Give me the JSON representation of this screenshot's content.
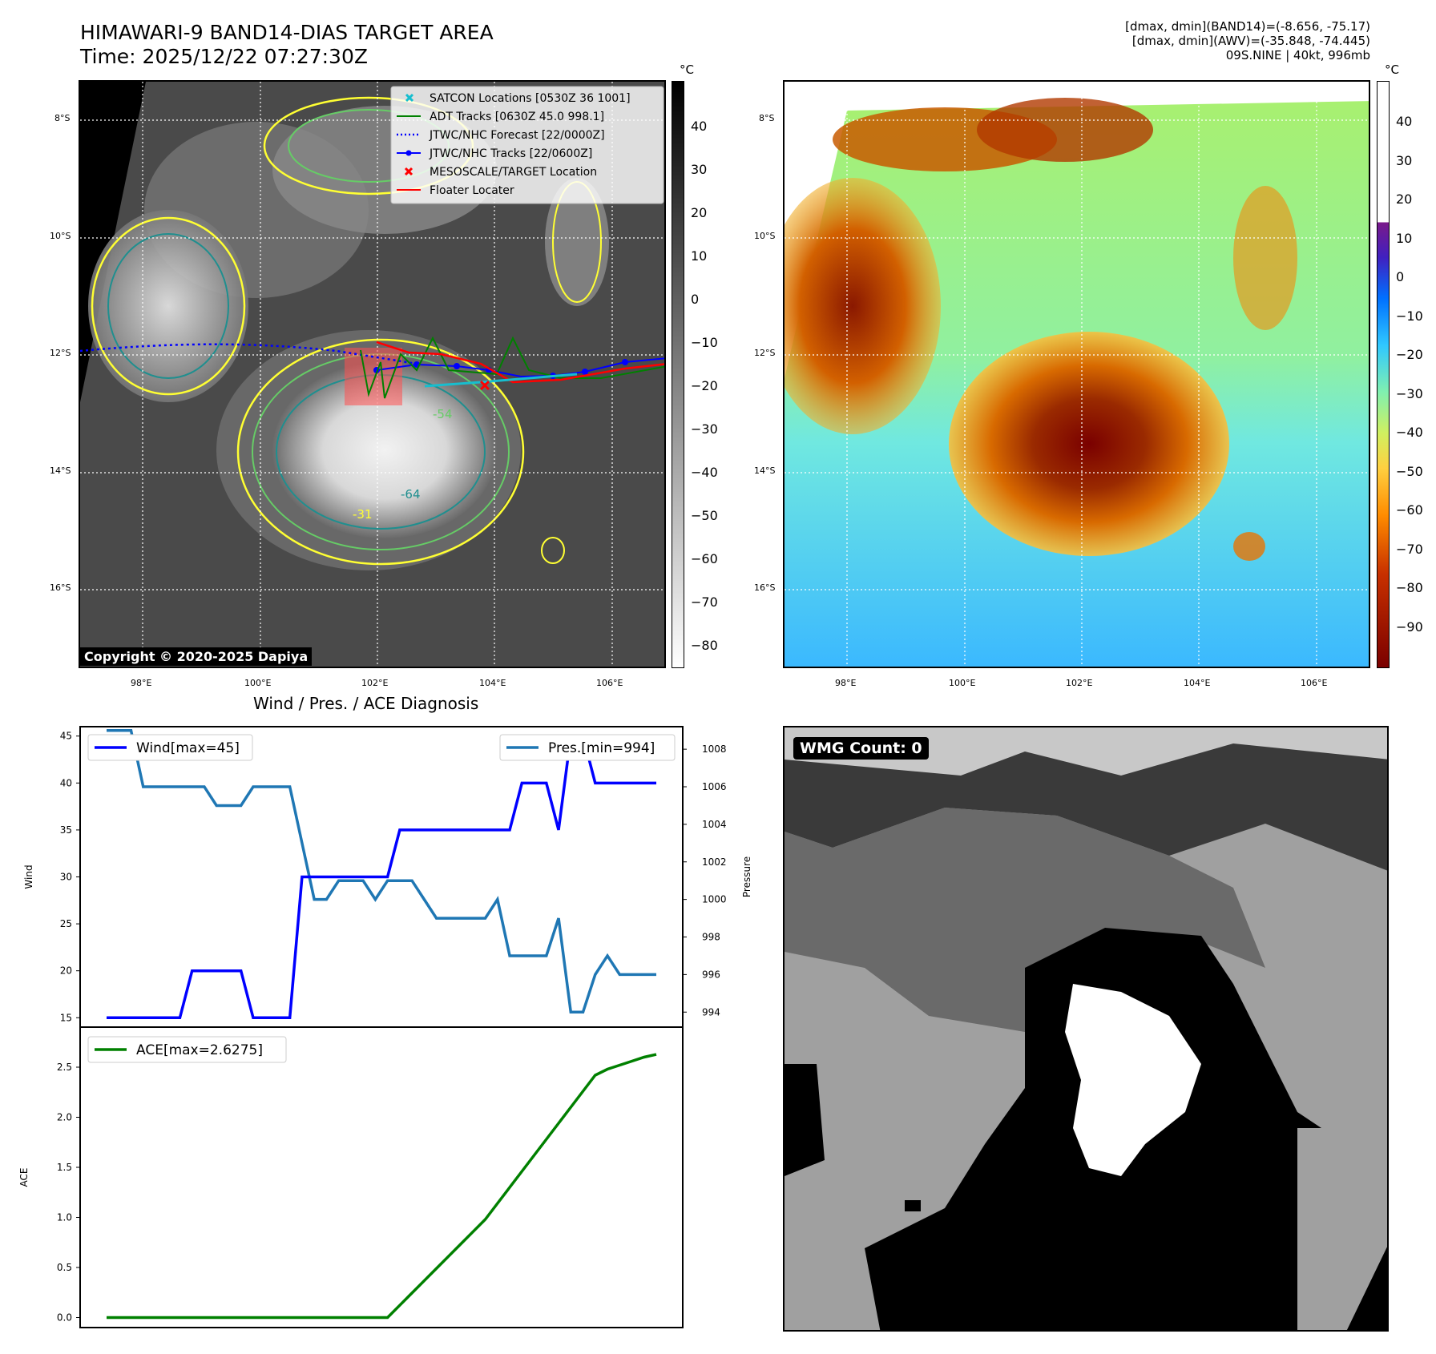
{
  "header": {
    "title": "HIMAWARI-9 BAND14-DIAS TARGET AREA",
    "time": "Time: 2025/12/22 07:27:30Z",
    "info_line1": "[dmax, dmin](BAND14)=(-8.656, -75.17)",
    "info_line2": "[dmax, dmin](AWV)=(-35.848, -74.445)",
    "info_line3": "09S.NINE | 40kt, 996mb"
  },
  "map": {
    "lat_labels": [
      "8°S",
      "10°S",
      "12°S",
      "14°S",
      "16°S"
    ],
    "lon_labels": [
      "98°E",
      "100°E",
      "102°E",
      "104°E",
      "106°E"
    ],
    "contour_labels": [
      "-31",
      "-54",
      "-64"
    ],
    "copyright": "Copyright © 2020-2025 Dapiya",
    "legend": [
      {
        "label": "SATCON Locations [0530Z 36 1001]",
        "color": "#17becf",
        "marker": "x"
      },
      {
        "label": "ADT Tracks [0630Z 45.0 998.1]",
        "color": "#008000",
        "marker": "line"
      },
      {
        "label": "JTWC/NHC Forecast [22/0000Z]",
        "color": "#0000ff",
        "marker": "dotted"
      },
      {
        "label": "JTWC/NHC Tracks [22/0600Z]",
        "color": "#0000ff",
        "marker": "line-dot"
      },
      {
        "label": "MESOSCALE/TARGET Location",
        "color": "#ff0000",
        "marker": "x"
      },
      {
        "label": "Floater Locater",
        "color": "#ff0000",
        "marker": "line"
      }
    ]
  },
  "colorbar_gray": {
    "unit": "°C",
    "ticks": [
      "40",
      "30",
      "20",
      "10",
      "0",
      "−10",
      "−20",
      "−30",
      "−40",
      "−50",
      "−60",
      "−70",
      "−80"
    ]
  },
  "colorbar_color": {
    "unit": "°C",
    "ticks": [
      "40",
      "30",
      "20",
      "10",
      "0",
      "−10",
      "−20",
      "−30",
      "−40",
      "−50",
      "−60",
      "−70",
      "−80",
      "−90"
    ]
  },
  "wmg": {
    "label": "WMG Count: 0"
  },
  "chart_data": [
    {
      "type": "line",
      "title": "Wind / Pres. / ACE Diagnosis",
      "xlabel": "",
      "ylabel": "Wind",
      "ylabel_right": "Pressure",
      "ylim": [
        14,
        46
      ],
      "ylim_right": [
        993.2,
        1009.2
      ],
      "y_ticks": [
        "15",
        "20",
        "25",
        "30",
        "35",
        "40",
        "45"
      ],
      "y_ticks_right": [
        "994",
        "996",
        "998",
        "1000",
        "1002",
        "1004",
        "1006",
        "1008"
      ],
      "x": [
        0,
        1,
        2,
        3,
        4,
        5,
        6,
        7,
        8,
        9,
        10,
        11,
        12,
        13,
        14,
        15,
        16,
        17,
        18,
        19,
        20,
        21,
        22,
        23,
        24,
        25,
        26,
        27,
        28,
        29,
        30,
        31,
        32,
        33,
        34,
        35,
        36,
        37,
        38,
        39,
        40,
        41,
        42,
        43,
        44,
        45
      ],
      "series": [
        {
          "name": "Wind[max=45]",
          "axis": "left",
          "color": "#0000ff",
          "values": [
            15,
            15,
            15,
            15,
            15,
            15,
            15,
            20,
            20,
            20,
            20,
            20,
            15,
            15,
            15,
            15,
            30,
            30,
            30,
            30,
            30,
            30,
            30,
            30,
            35,
            35,
            35,
            35,
            35,
            35,
            35,
            35,
            35,
            35,
            40,
            40,
            40,
            35,
            45,
            45,
            40,
            40,
            40,
            40,
            40,
            40
          ]
        },
        {
          "name": "Pres.[min=994]",
          "axis": "right",
          "color": "#1f77b4",
          "values": [
            1009,
            1009,
            1009,
            1006,
            1006,
            1006,
            1006,
            1006,
            1006,
            1005,
            1005,
            1005,
            1006,
            1006,
            1006,
            1006,
            1003,
            1000,
            1000,
            1001,
            1001,
            1001,
            1000,
            1001,
            1001,
            1001,
            1000,
            999,
            999,
            999,
            999,
            999,
            1000,
            997,
            997,
            997,
            997,
            999,
            994,
            994,
            996,
            997,
            996,
            996,
            996,
            996
          ]
        }
      ]
    },
    {
      "type": "line",
      "title": "",
      "xlabel": "",
      "ylabel": "ACE",
      "ylim": [
        -0.1,
        2.9
      ],
      "y_ticks": [
        "0.0",
        "0.5",
        "1.0",
        "1.5",
        "2.0",
        "2.5"
      ],
      "x": [
        0,
        1,
        2,
        3,
        4,
        5,
        6,
        7,
        8,
        9,
        10,
        11,
        12,
        13,
        14,
        15,
        16,
        17,
        18,
        19,
        20,
        21,
        22,
        23,
        24,
        25,
        26,
        27,
        28,
        29,
        30,
        31,
        32,
        33,
        34,
        35,
        36,
        37,
        38,
        39,
        40,
        41,
        42,
        43,
        44,
        45
      ],
      "series": [
        {
          "name": "ACE[max=2.6275]",
          "color": "#008000",
          "values": [
            0,
            0,
            0,
            0,
            0,
            0,
            0,
            0,
            0,
            0,
            0,
            0,
            0,
            0,
            0,
            0,
            0,
            0,
            0,
            0,
            0,
            0,
            0,
            0,
            0.1225,
            0.245,
            0.3675,
            0.49,
            0.6125,
            0.735,
            0.8575,
            0.98,
            1.14,
            1.3,
            1.46,
            1.62,
            1.78,
            1.94,
            2.1,
            2.26,
            2.42,
            2.48,
            2.52,
            2.56,
            2.6,
            2.6275
          ]
        }
      ]
    }
  ]
}
